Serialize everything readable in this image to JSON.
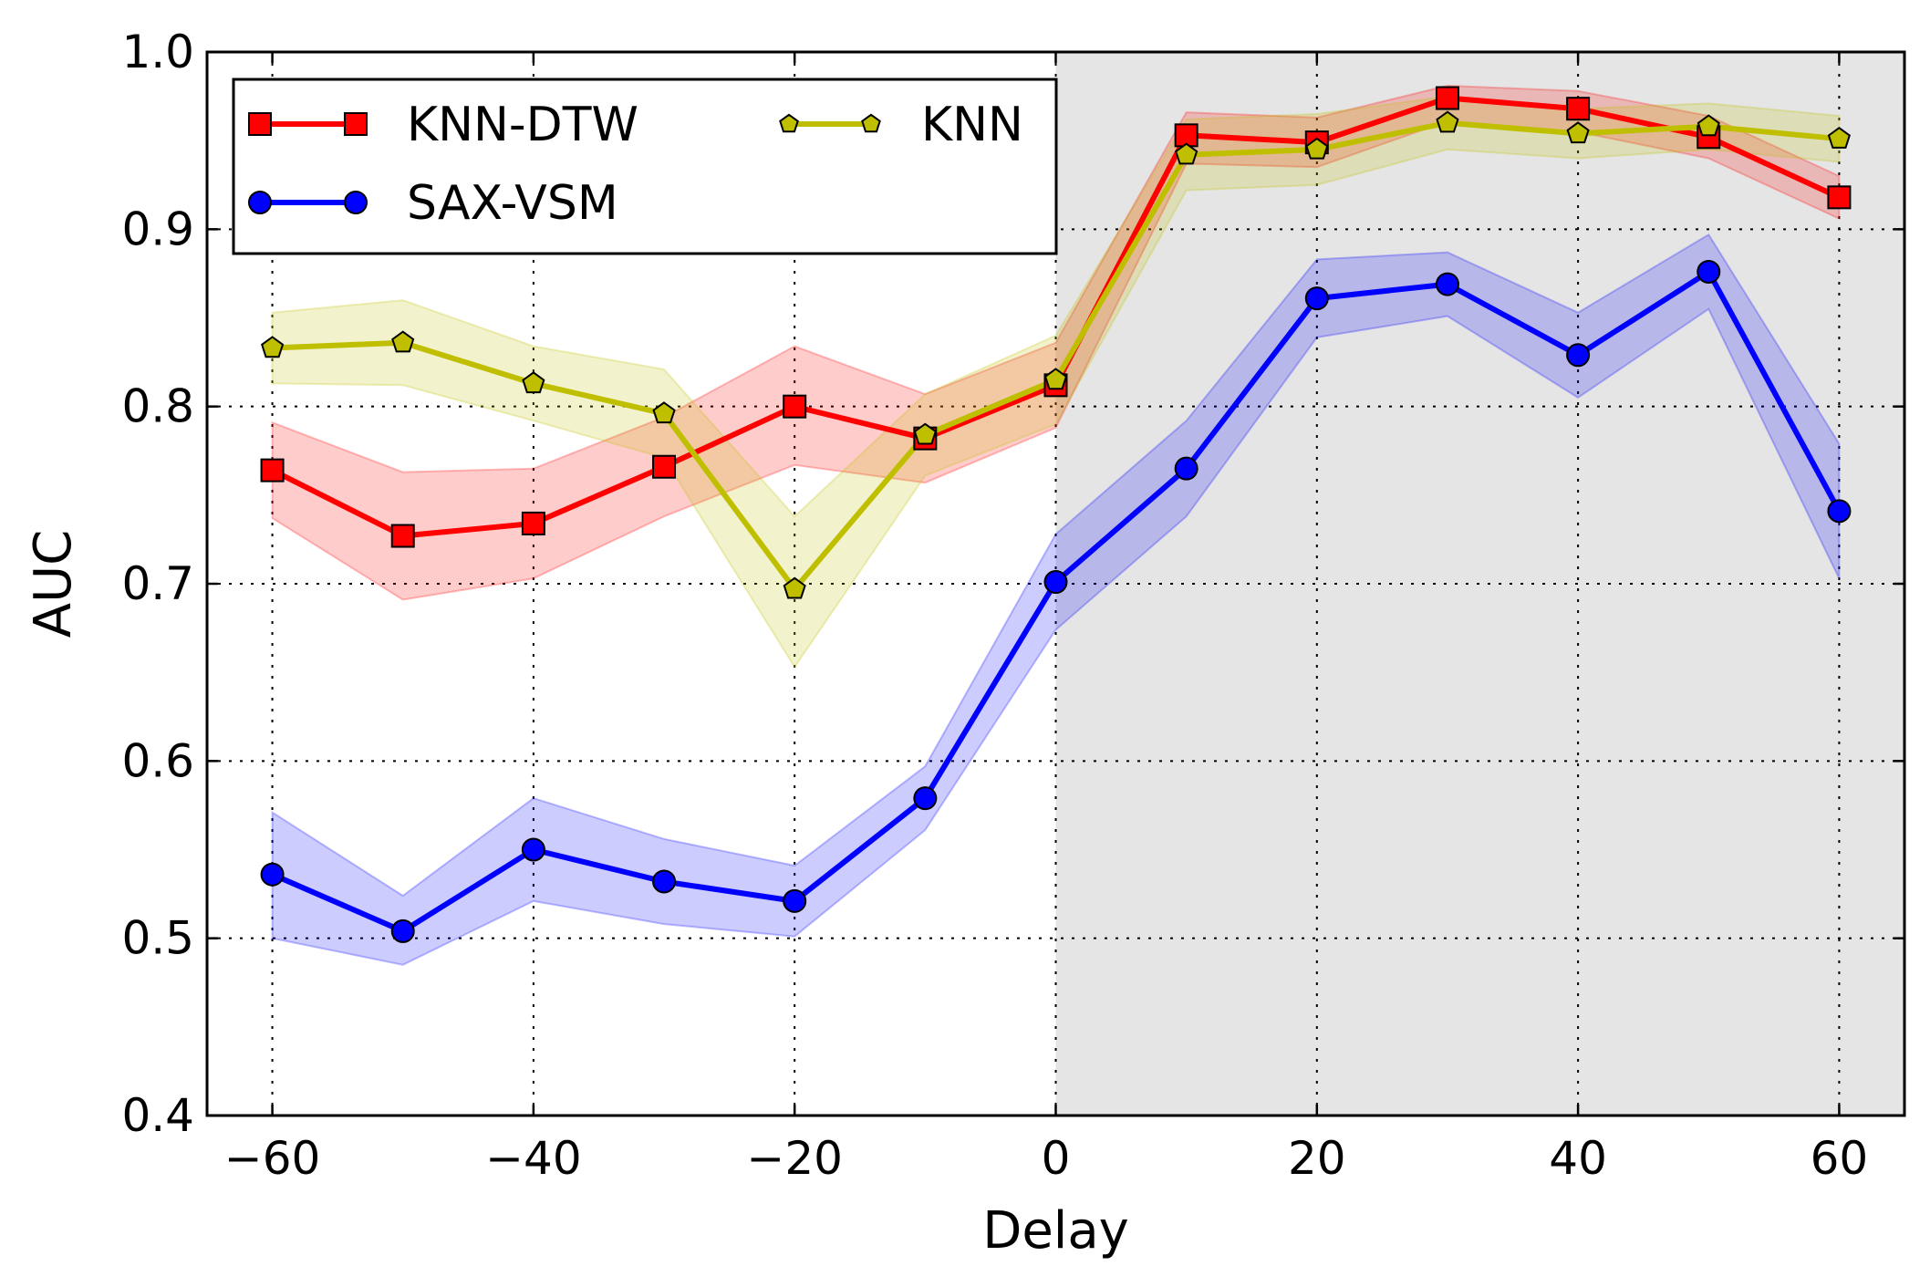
{
  "chart_data": {
    "type": "line",
    "title": "",
    "xlabel": "Delay",
    "ylabel": "AUC",
    "xlim": [
      -65,
      65
    ],
    "ylim": [
      0.4,
      1.0
    ],
    "xticks": [
      -60,
      -40,
      -20,
      0,
      20,
      40,
      60
    ],
    "xtick_labels": [
      "−60",
      "−40",
      "−20",
      "0",
      "20",
      "40",
      "60"
    ],
    "yticks": [
      0.4,
      0.5,
      0.6,
      0.7,
      0.8,
      0.9,
      1.0
    ],
    "ytick_labels": [
      "0.4",
      "0.5",
      "0.6",
      "0.7",
      "0.8",
      "0.9",
      "1.0"
    ],
    "grid": true,
    "shaded_region": {
      "x_from": 0,
      "x_to": 65,
      "color": "#e5e5e5"
    },
    "x": [
      -60,
      -50,
      -40,
      -30,
      -20,
      -10,
      0,
      10,
      20,
      30,
      40,
      50,
      60
    ],
    "series": [
      {
        "name": "KNN-DTW",
        "color": "#ff0000",
        "band_color": "#ff0000",
        "marker": "square",
        "values": [
          0.764,
          0.727,
          0.734,
          0.766,
          0.8,
          0.782,
          0.812,
          0.953,
          0.949,
          0.974,
          0.968,
          0.952,
          0.918
        ],
        "lower": [
          0.737,
          0.691,
          0.703,
          0.738,
          0.767,
          0.757,
          0.788,
          0.937,
          0.935,
          0.961,
          0.955,
          0.94,
          0.906
        ],
        "upper": [
          0.791,
          0.763,
          0.765,
          0.794,
          0.834,
          0.807,
          0.836,
          0.966,
          0.963,
          0.981,
          0.978,
          0.964,
          0.93
        ]
      },
      {
        "name": "SAX-VSM",
        "color": "#0000ff",
        "band_color": "#0000ff",
        "marker": "circle",
        "values": [
          0.536,
          0.504,
          0.55,
          0.532,
          0.521,
          0.579,
          0.701,
          0.765,
          0.861,
          0.869,
          0.829,
          0.876,
          0.741
        ],
        "lower": [
          0.5,
          0.485,
          0.521,
          0.508,
          0.501,
          0.561,
          0.674,
          0.738,
          0.839,
          0.851,
          0.805,
          0.855,
          0.703
        ],
        "upper": [
          0.571,
          0.524,
          0.579,
          0.556,
          0.541,
          0.597,
          0.728,
          0.792,
          0.883,
          0.887,
          0.853,
          0.897,
          0.779
        ]
      },
      {
        "name": "KNN",
        "color": "#bfbf00",
        "band_color": "#bfbf00",
        "marker": "pentagon",
        "values": [
          0.833,
          0.836,
          0.813,
          0.796,
          0.697,
          0.784,
          0.815,
          0.942,
          0.945,
          0.96,
          0.954,
          0.958,
          0.951
        ],
        "lower": [
          0.813,
          0.812,
          0.792,
          0.771,
          0.653,
          0.761,
          0.79,
          0.922,
          0.925,
          0.945,
          0.94,
          0.945,
          0.938
        ],
        "upper": [
          0.853,
          0.86,
          0.834,
          0.821,
          0.738,
          0.807,
          0.84,
          0.962,
          0.965,
          0.975,
          0.968,
          0.971,
          0.964
        ]
      }
    ],
    "legend": {
      "placement": "top-left",
      "columns": 2,
      "entries": [
        "KNN-DTW",
        "KNN",
        "SAX-VSM"
      ]
    }
  }
}
